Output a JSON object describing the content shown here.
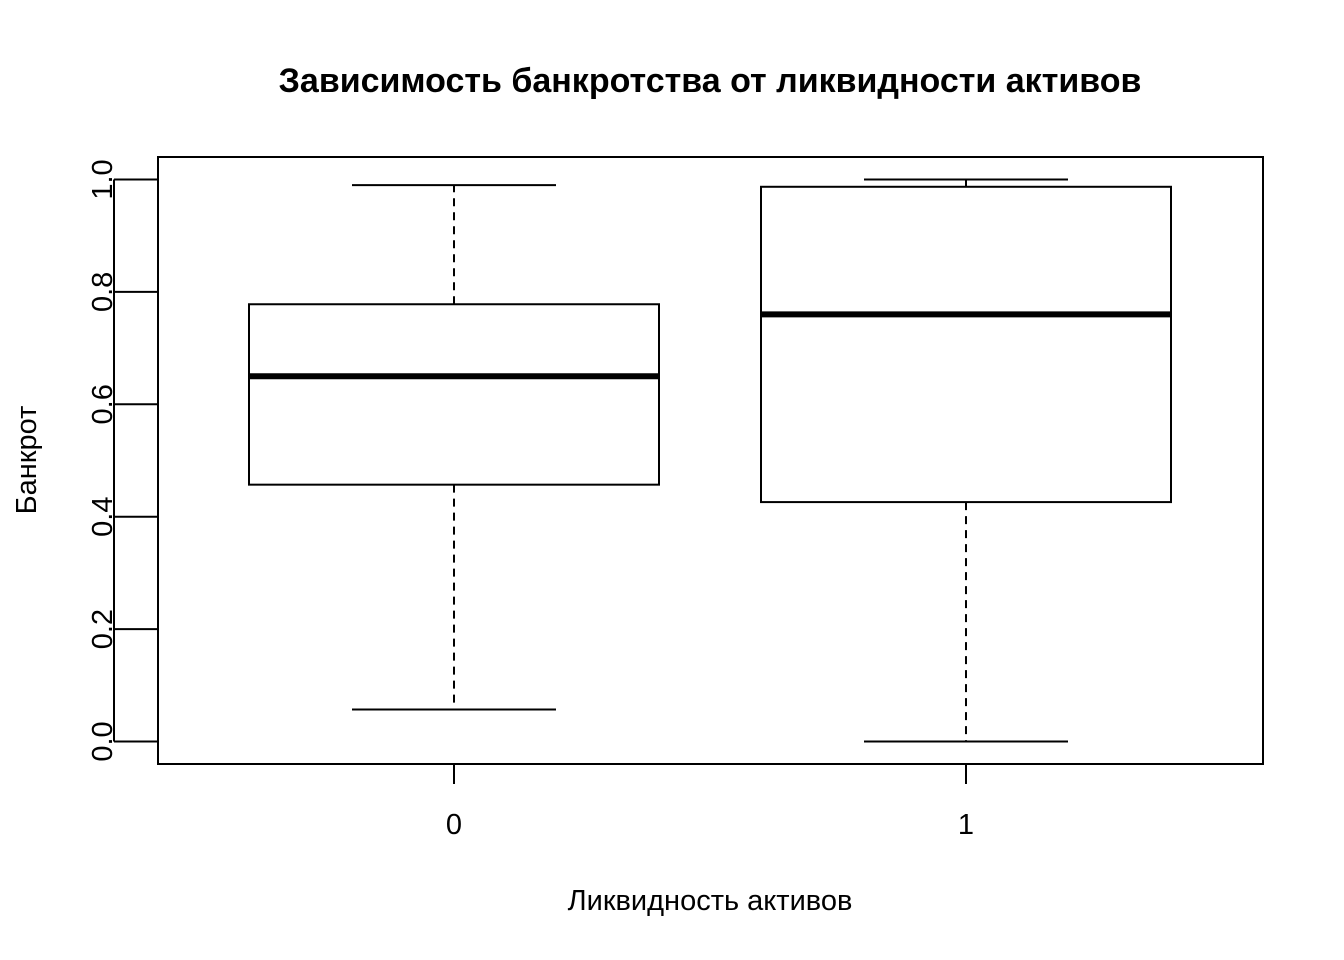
{
  "chart_data": {
    "type": "boxplot",
    "title": "Зависимость банкротства от ликвидности активов",
    "xlabel": "Ликвидность активов",
    "ylabel": "Банкрот",
    "ylim": [
      -0.04,
      1.04
    ],
    "yticks": [
      "0.0",
      "0.2",
      "0.4",
      "0.6",
      "0.8",
      "1.0"
    ],
    "categories": [
      "0",
      "1"
    ],
    "boxes": [
      {
        "category": "0",
        "whisker_low": 0.057,
        "q1": 0.457,
        "median": 0.65,
        "q3": 0.778,
        "whisker_high": 0.99
      },
      {
        "category": "1",
        "whisker_low": 0.0,
        "q1": 0.426,
        "median": 0.76,
        "q3": 0.987,
        "whisker_high": 1.0
      }
    ],
    "grid": false,
    "legend": "none"
  }
}
